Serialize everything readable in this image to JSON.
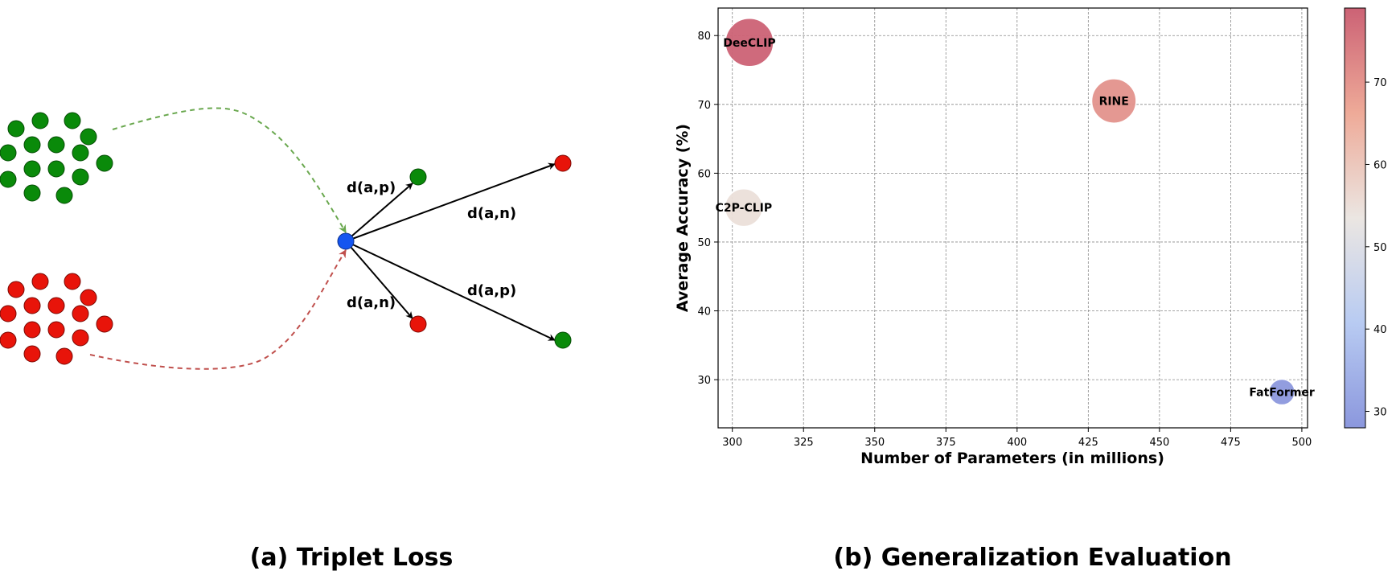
{
  "panel_a": {
    "caption": "(a) Triplet Loss",
    "labels": {
      "upper_positive": "d(a,p)",
      "upper_negative": "d(a,n)",
      "lower_negative": "d(a,n)",
      "lower_positive": "d(a,p)"
    },
    "colors": {
      "positive": "#0a8a0a",
      "negative": "#e8140a",
      "anchor": "#1455f0",
      "pos_curve": "#6aa84f",
      "neg_curve": "#c0504d"
    }
  },
  "panel_b": {
    "caption": "(b) Generalization Evaluation"
  },
  "chart_data": {
    "type": "scatter",
    "title": "",
    "xlabel": "Number of Parameters (in millions)",
    "ylabel": "Average Accuracy (%)",
    "xlim": [
      295,
      502
    ],
    "ylim": [
      23,
      84
    ],
    "xticks": [
      300,
      325,
      350,
      375,
      400,
      425,
      450,
      475,
      500
    ],
    "yticks": [
      30,
      40,
      50,
      60,
      70,
      80
    ],
    "grid": true,
    "colorbar": {
      "colormap": "coolwarm",
      "range": [
        28,
        79
      ],
      "ticks": [
        30,
        40,
        50,
        60,
        70
      ]
    },
    "points": [
      {
        "label": "DeeCLIP",
        "x": 306,
        "y": 79
      },
      {
        "label": "RINE",
        "x": 434,
        "y": 70.5
      },
      {
        "label": "C2P-CLIP",
        "x": 304,
        "y": 55
      },
      {
        "label": "FatFormer",
        "x": 493,
        "y": 28.2
      }
    ]
  }
}
